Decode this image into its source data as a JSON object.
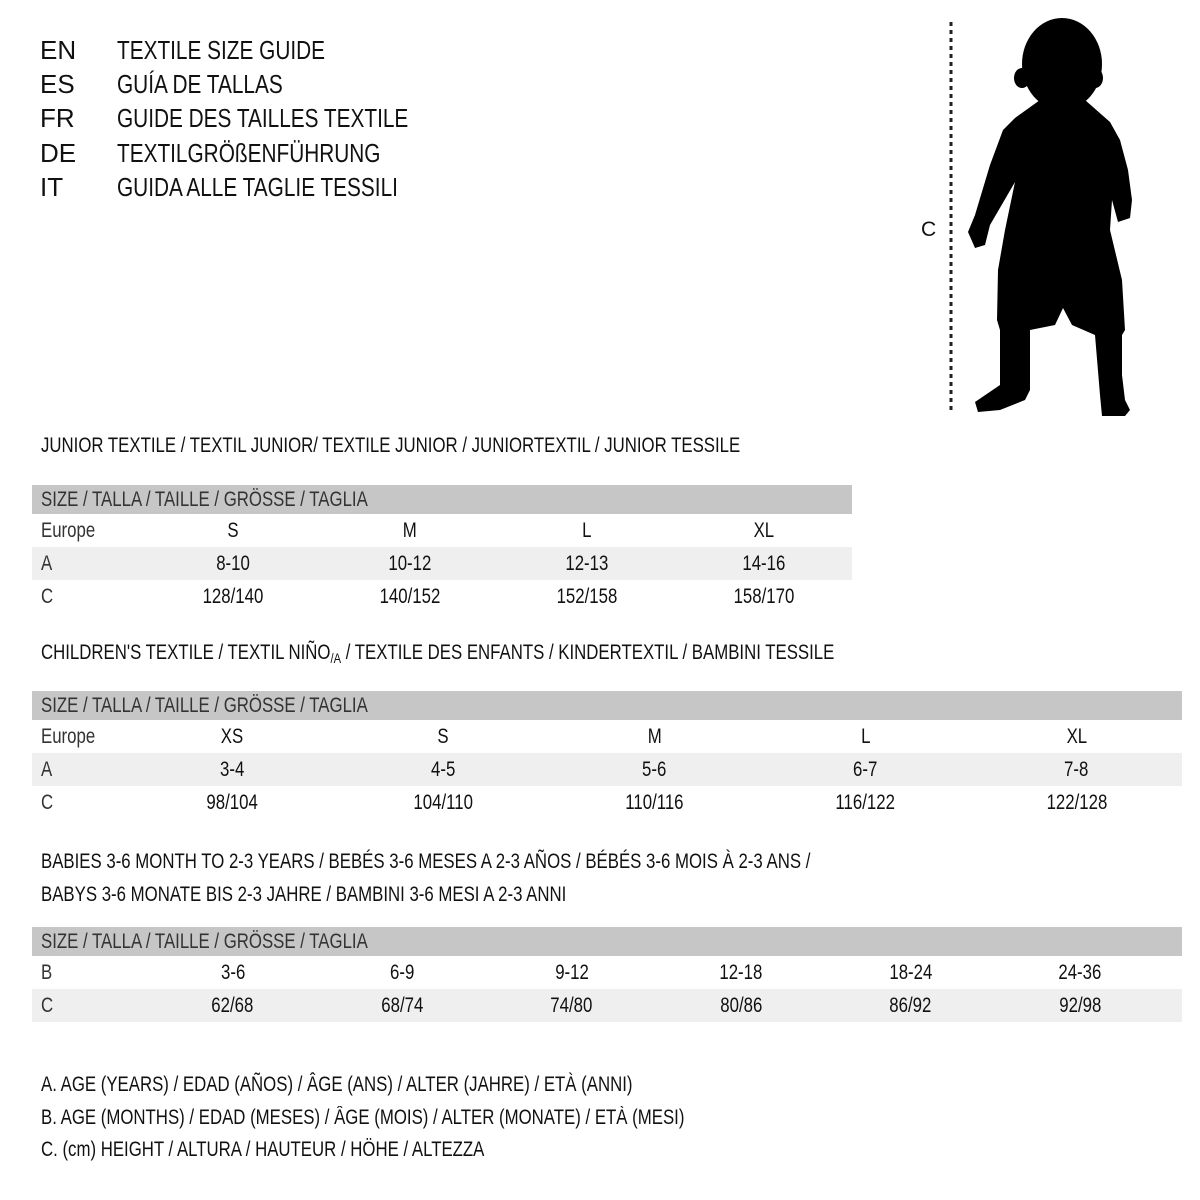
{
  "languages": [
    {
      "code": "EN",
      "title": "TEXTILE SIZE GUIDE"
    },
    {
      "code": "ES",
      "title": "GUÍA DE TALLAS"
    },
    {
      "code": "FR",
      "title": "GUIDE DES TAILLES TEXTILE"
    },
    {
      "code": "DE",
      "title": "TEXTILGRÖßENFÜHRUNG"
    },
    {
      "code": "IT",
      "title": "GUIDA ALLE TAGLIE TESSILI"
    }
  ],
  "figure": {
    "measure_label": "C",
    "silhouette": "child-silhouette"
  },
  "junior": {
    "heading": "JUNIOR TEXTILE / TEXTIL JUNIOR/ TEXTILE JUNIOR / JUNIORTEXTIL / JUNIOR TESSILE",
    "table": {
      "header": "SIZE / TALLA / TAILLE / GRÖSSE / TAGLIA",
      "rows": [
        {
          "label": "Europe",
          "values": [
            "S",
            "M",
            "L",
            "XL"
          ]
        },
        {
          "label": "A",
          "values": [
            "8-10",
            "10-12",
            "12-13",
            "14-16"
          ]
        },
        {
          "label": "C",
          "values": [
            "128/140",
            "140/152",
            "152/158",
            "158/170"
          ]
        }
      ]
    }
  },
  "children": {
    "heading_before": "CHILDREN'S TEXTILE / TEXTIL NIÑO",
    "heading_sub": "/A",
    "heading_after": " / TEXTILE DES ENFANTS / KINDERTEXTIL / BAMBINI TESSILE",
    "table": {
      "header": "SIZE / TALLA / TAILLE / GRÖSSE / TAGLIA",
      "rows": [
        {
          "label": "Europe",
          "values": [
            "XS",
            "S",
            "M",
            "L",
            "XL"
          ]
        },
        {
          "label": "A",
          "values": [
            "3-4",
            "4-5",
            "5-6",
            "6-7",
            "7-8"
          ]
        },
        {
          "label": "C",
          "values": [
            "98/104",
            "104/110",
            "110/116",
            "116/122",
            "122/128"
          ]
        }
      ]
    }
  },
  "babies": {
    "heading_line1": "BABIES 3-6 MONTH TO 2-3 YEARS / BEBÉS 3-6 MESES A 2-3 AÑOS / BÉBÉS 3-6 MOIS À 2-3 ANS /",
    "heading_line2": "BABYS 3-6 MONATE BIS 2-3 JAHRE / BAMBINI 3-6 MESI A 2-3 ANNI",
    "table": {
      "header": "SIZE / TALLA / TAILLE / GRÖSSE / TAGLIA",
      "rows": [
        {
          "label": "B",
          "values": [
            "3-6",
            "6-9",
            "9-12",
            "12-18",
            "18-24",
            "24-36"
          ]
        },
        {
          "label": "C",
          "values": [
            "62/68",
            "68/74",
            "74/80",
            "80/86",
            "86/92",
            "92/98"
          ]
        }
      ]
    }
  },
  "legend": [
    "A. AGE (YEARS) / EDAD (AÑOS) / ÂGE (ANS) / ALTER (JAHRE) / ETÀ (ANNI)",
    "B. AGE (MONTHS) / EDAD (MESES) / ÂGE (MOIS) / ALTER (MONATE) / ETÀ (MESI)",
    "C. (cm) HEIGHT / ALTURA / HAUTEUR / HÖHE / ALTEZZA"
  ],
  "colors": {
    "header_bg": "#c6c6c6",
    "alt_row_bg": "#efefef",
    "text": "#111111"
  }
}
